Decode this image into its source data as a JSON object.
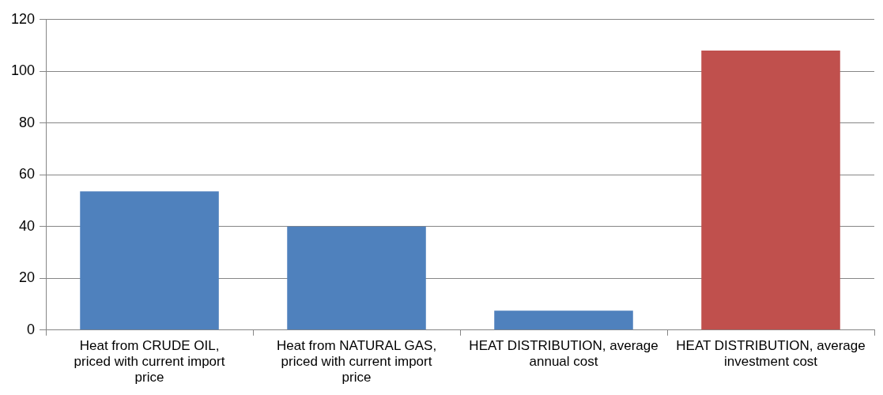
{
  "chart_data": {
    "type": "bar",
    "categories": [
      "Heat from CRUDE OIL, priced with current import price",
      "Heat from NATURAL GAS, priced with current import price",
      "HEAT DISTRIBUTION, average annual cost",
      "HEAT DISTRIBUTION, average investment cost"
    ],
    "values": [
      53.6,
      40,
      7.5,
      108
    ],
    "colors": [
      "#4f81bd",
      "#4f81bd",
      "#4f81bd",
      "#c0504d"
    ],
    "ylim": [
      0,
      120
    ],
    "yticks": [
      0,
      20,
      40,
      60,
      80,
      100,
      120
    ],
    "grid": "y",
    "legend": false
  }
}
